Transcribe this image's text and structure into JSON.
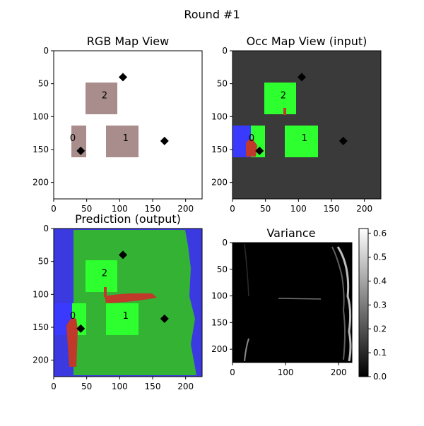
{
  "figure": {
    "suptitle": "Round #1",
    "panels": [
      {
        "id": "rgb",
        "title": "RGB Map View",
        "x_ticks": [
          "0",
          "50",
          "100",
          "150",
          "200"
        ],
        "y_ticks": [
          "0",
          "50",
          "100",
          "150",
          "200"
        ]
      },
      {
        "id": "occ",
        "title": "Occ Map View (input)",
        "x_ticks": [
          "0",
          "50",
          "100",
          "150",
          "200"
        ],
        "y_ticks": [
          "0",
          "50",
          "100",
          "150",
          "200"
        ]
      },
      {
        "id": "pred",
        "title": "Prediction (output)",
        "x_ticks": [
          "0",
          "50",
          "100",
          "150",
          "200"
        ],
        "y_ticks": [
          "0",
          "50",
          "100",
          "150",
          "200"
        ]
      },
      {
        "id": "var",
        "title": "Variance",
        "x_ticks": [
          "0",
          "100",
          "200"
        ],
        "y_ticks": [
          "0",
          "50",
          "100",
          "150",
          "200"
        ]
      }
    ],
    "markers": {
      "diamonds": [
        [
          105,
          40
        ],
        [
          168,
          137
        ],
        [
          41,
          152
        ]
      ],
      "region_labels": [
        {
          "text": "2",
          "x": 77,
          "y": 67
        },
        {
          "text": "0",
          "x": 29,
          "y": 132
        },
        {
          "text": "1",
          "x": 109,
          "y": 132
        }
      ]
    },
    "colorbar": {
      "ticks": [
        "0.0",
        "0.1",
        "0.2",
        "0.3",
        "0.4",
        "0.5",
        "0.6"
      ],
      "range": [
        0,
        0.62
      ]
    },
    "colors": {
      "occupied_gray": "#3a3a3a",
      "room_green": "#2eff2e",
      "predicted_green": "#33b233",
      "unknown_blue": "#3a3ae0",
      "robot_blue": "#3a3aff",
      "object_red": "#c0392b",
      "rgb_patch": "#a98d8d"
    }
  }
}
